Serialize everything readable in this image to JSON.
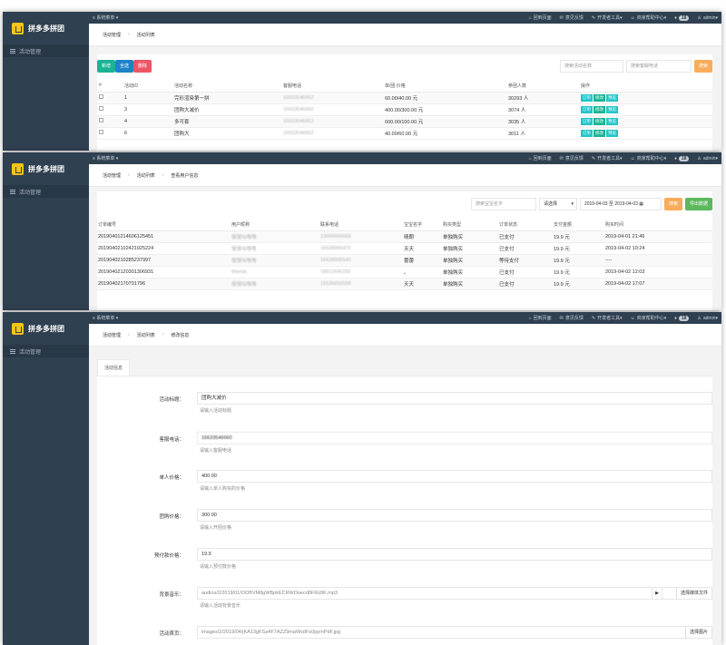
{
  "app": {
    "name": "拼多多拼团",
    "menu": "活动管理",
    "topbar": {
      "system_menu": "系统菜单",
      "items": [
        {
          "icon": "home-icon",
          "label": "回到页面"
        },
        {
          "icon": "feedback-icon",
          "label": "意见反馈"
        },
        {
          "icon": "tool-icon",
          "label": "开发者工具"
        },
        {
          "icon": "help-icon",
          "label": "商家帮助中心"
        }
      ],
      "badge": "18",
      "user": "admin"
    }
  },
  "panel1": {
    "breadcrumb": [
      "活动管理",
      "活动列表"
    ],
    "buttons": {
      "add": "新增",
      "all": "全选",
      "delete": "删除"
    },
    "search": {
      "name_placeholder": "搜索活动名称",
      "phone_placeholder": "搜索客服电话",
      "button": "搜索"
    },
    "columns": [
      "#",
      "活动ID",
      "活动名称",
      "客服电话",
      "单/团 价格",
      "参团人数",
      "操作"
    ],
    "rows": [
      {
        "id": "1",
        "name": "完形渲染第一拼",
        "phone": "16633546652",
        "price": "60.00/40.00 元",
        "count": "30293 人"
      },
      {
        "id": "3",
        "name": "团购大减价",
        "phone": "16633546660",
        "price": "400.00/300.00 元",
        "count": "3074 人"
      },
      {
        "id": "4",
        "name": "多可套",
        "phone": "16633546652",
        "price": "600.00/100.00 元",
        "count": "3035 人"
      },
      {
        "id": "6",
        "name": "团购大",
        "phone": "16633546652",
        "price": "40.00/60.00 元",
        "count": "3011 人"
      }
    ],
    "ops": {
      "order": "订单",
      "edit": "修改",
      "preview": "预览"
    }
  },
  "panel2": {
    "breadcrumb": [
      "活动管理",
      "活动列表",
      "查看用户信息"
    ],
    "filter": {
      "search_placeholder": "搜索宝宝名字",
      "select": "请选择",
      "date_range": "2019-04-03 至 2019-04-03",
      "search": "搜索",
      "export": "导出数据"
    },
    "columns": [
      "订单编号",
      "用户昵称",
      "联系电话",
      "宝宝名字",
      "购买类型",
      "订单状态",
      "支付金额",
      "购买时间"
    ],
    "rows": [
      {
        "order": "20190401214606125451",
        "nick": "慢慢咕噜噜",
        "phone": "13666666666",
        "baby": "晴朗",
        "type": "单独购买",
        "status": "已支付",
        "amount": "19.9 元",
        "time": "2019-04-01 21:46"
      },
      {
        "order": "20190402102421925224",
        "nick": "慢慢咕噜噜",
        "phone": "16638966470",
        "baby": "天天",
        "type": "单独购买",
        "status": "已支付",
        "amount": "19.9 元",
        "time": "2019-04-02 10:24"
      },
      {
        "order": "2019040210285237997",
        "nick": "慢慢咕噜噜",
        "phone": "16638895540",
        "baby": "蕾蕾",
        "type": "单独购买",
        "status": "等待支付",
        "amount": "19.9 元",
        "time": "----"
      },
      {
        "order": "20190402120301306931",
        "nick": "Manda",
        "phone": "18811696293",
        "baby": "。",
        "type": "单独购买",
        "status": "已支付",
        "amount": "19.9 元",
        "time": "2019-04-02 12:03"
      },
      {
        "order": "20190402170701796",
        "nick": "慢慢咕噜噜",
        "phone": "15536858558",
        "baby": "天天",
        "type": "单独购买",
        "status": "已支付",
        "amount": "19.9 元",
        "time": "2019-04-02 17:07"
      }
    ]
  },
  "panel3": {
    "breadcrumb": [
      "活动管理",
      "活动列表",
      "修改信息"
    ],
    "tab": "活动信息",
    "fields": [
      {
        "label": "活动标题：",
        "value": "团购大减价",
        "help": "请输入活动标题"
      },
      {
        "label": "客服电话：",
        "value": "16633546660",
        "help": "请输入客服电话"
      },
      {
        "label": "单人价格：",
        "value": "400.00",
        "help": "请输入单人购买的价格"
      },
      {
        "label": "团购价格：",
        "value": "300.00",
        "help": "请输入开团价格"
      },
      {
        "label": "预付款价格：",
        "value": "19.9",
        "help": "请输入预付款价格"
      },
      {
        "label": "背景音乐：",
        "value": "audios/2/2019/01/OOBVM8gWBpkECRWOoecd8FRz8K.mp3",
        "help": "请输入活动背景音乐",
        "button": "选择媒体文件"
      },
      {
        "label": "活动首页：",
        "value": "images/2/2019/04/jKA13gKSa4F7AZZ9maWsdFs0ppmPdF.jpg",
        "help": "",
        "button": "选择图片"
      }
    ]
  }
}
